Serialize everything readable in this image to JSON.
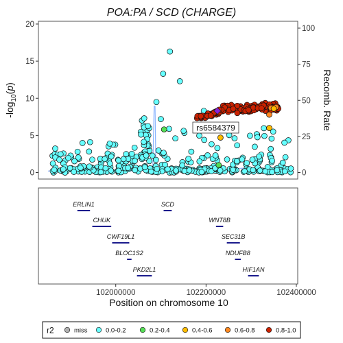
{
  "chart_data": {
    "type": "scatter",
    "title": "POA:PA / SCD (CHARGE)",
    "ylabel": "-log10(p)",
    "y2label": "Recomb. Rate",
    "xlabel": "Position on chromosome 10",
    "xlim": [
      101850000,
      102400000
    ],
    "ylim": [
      0,
      20
    ],
    "y2lim": [
      0,
      100
    ],
    "yticks": [
      "0",
      "5",
      "10",
      "15",
      "20"
    ],
    "y2ticks": [
      "0",
      "25",
      "50",
      "75",
      "100"
    ],
    "xticks": [
      "102000000",
      "102200000",
      "102400000"
    ],
    "lead_snp": {
      "label": "rs6584379",
      "x": 102225000,
      "y": 8.3
    },
    "points": {
      "r2_0.0-0.2_outliers": [
        [
          102120000,
          16.3
        ],
        [
          102105000,
          13.3
        ],
        [
          102142000,
          12.3
        ],
        [
          102195000,
          8.3
        ],
        [
          102090000,
          9.5
        ],
        [
          102058000,
          7.0
        ],
        [
          102063000,
          7.3
        ],
        [
          102100000,
          7.2
        ]
      ],
      "r2_0.2-0.4": [
        [
          102107000,
          5.8
        ],
        [
          102228000,
          1.0
        ]
      ],
      "r2_0.4-0.6": [
        [
          102232000,
          4.7
        ],
        [
          102340000,
          6.0
        ],
        [
          102350000,
          8.6
        ]
      ],
      "r2_0.6-0.8": [
        [
          102340000,
          7.8
        ],
        [
          102355000,
          8.8
        ],
        [
          102344000,
          8.7
        ]
      ],
      "r2_0.8-1.0_range": [
        102180000,
        102360000
      ]
    },
    "legend": {
      "title": "r2",
      "placement": "bottom",
      "items": [
        {
          "label": "miss",
          "color": "#b0b0b0"
        },
        {
          "label": "0.0-0.2",
          "color": "#66ffff"
        },
        {
          "label": "0.2-0.4",
          "color": "#55dd55"
        },
        {
          "label": "0.4-0.6",
          "color": "#ffbb00"
        },
        {
          "label": "0.6-0.8",
          "color": "#ff8820"
        },
        {
          "label": "0.8-1.0",
          "color": "#cc2200"
        }
      ]
    },
    "genes": [
      {
        "name": "ERLIN1",
        "start": 101915000,
        "end": 101943000,
        "row": 0
      },
      {
        "name": "SCD",
        "start": 102106000,
        "end": 102124000,
        "row": 0
      },
      {
        "name": "CHUK",
        "start": 101948000,
        "end": 101990000,
        "row": 1
      },
      {
        "name": "WNT8B",
        "start": 102222000,
        "end": 102238000,
        "row": 1
      },
      {
        "name": "CWF19L1",
        "start": 101992000,
        "end": 102030000,
        "row": 2
      },
      {
        "name": "SEC31B",
        "start": 102246000,
        "end": 102275000,
        "row": 2
      },
      {
        "name": "BLOC1S2",
        "start": 102025000,
        "end": 102035000,
        "row": 3
      },
      {
        "name": "NDUFB8",
        "start": 102264000,
        "end": 102277000,
        "row": 3
      },
      {
        "name": "PKD2L1",
        "start": 102047000,
        "end": 102080000,
        "row": 4
      },
      {
        "name": "HIF1AN",
        "start": 102293000,
        "end": 102317000,
        "row": 4
      }
    ],
    "colors": {
      "snp_edge": "#111111",
      "recomb_line": "#8ab4ff",
      "gene_bar": "#1a1a8c",
      "lead_snp": "#8a1fd8"
    }
  }
}
